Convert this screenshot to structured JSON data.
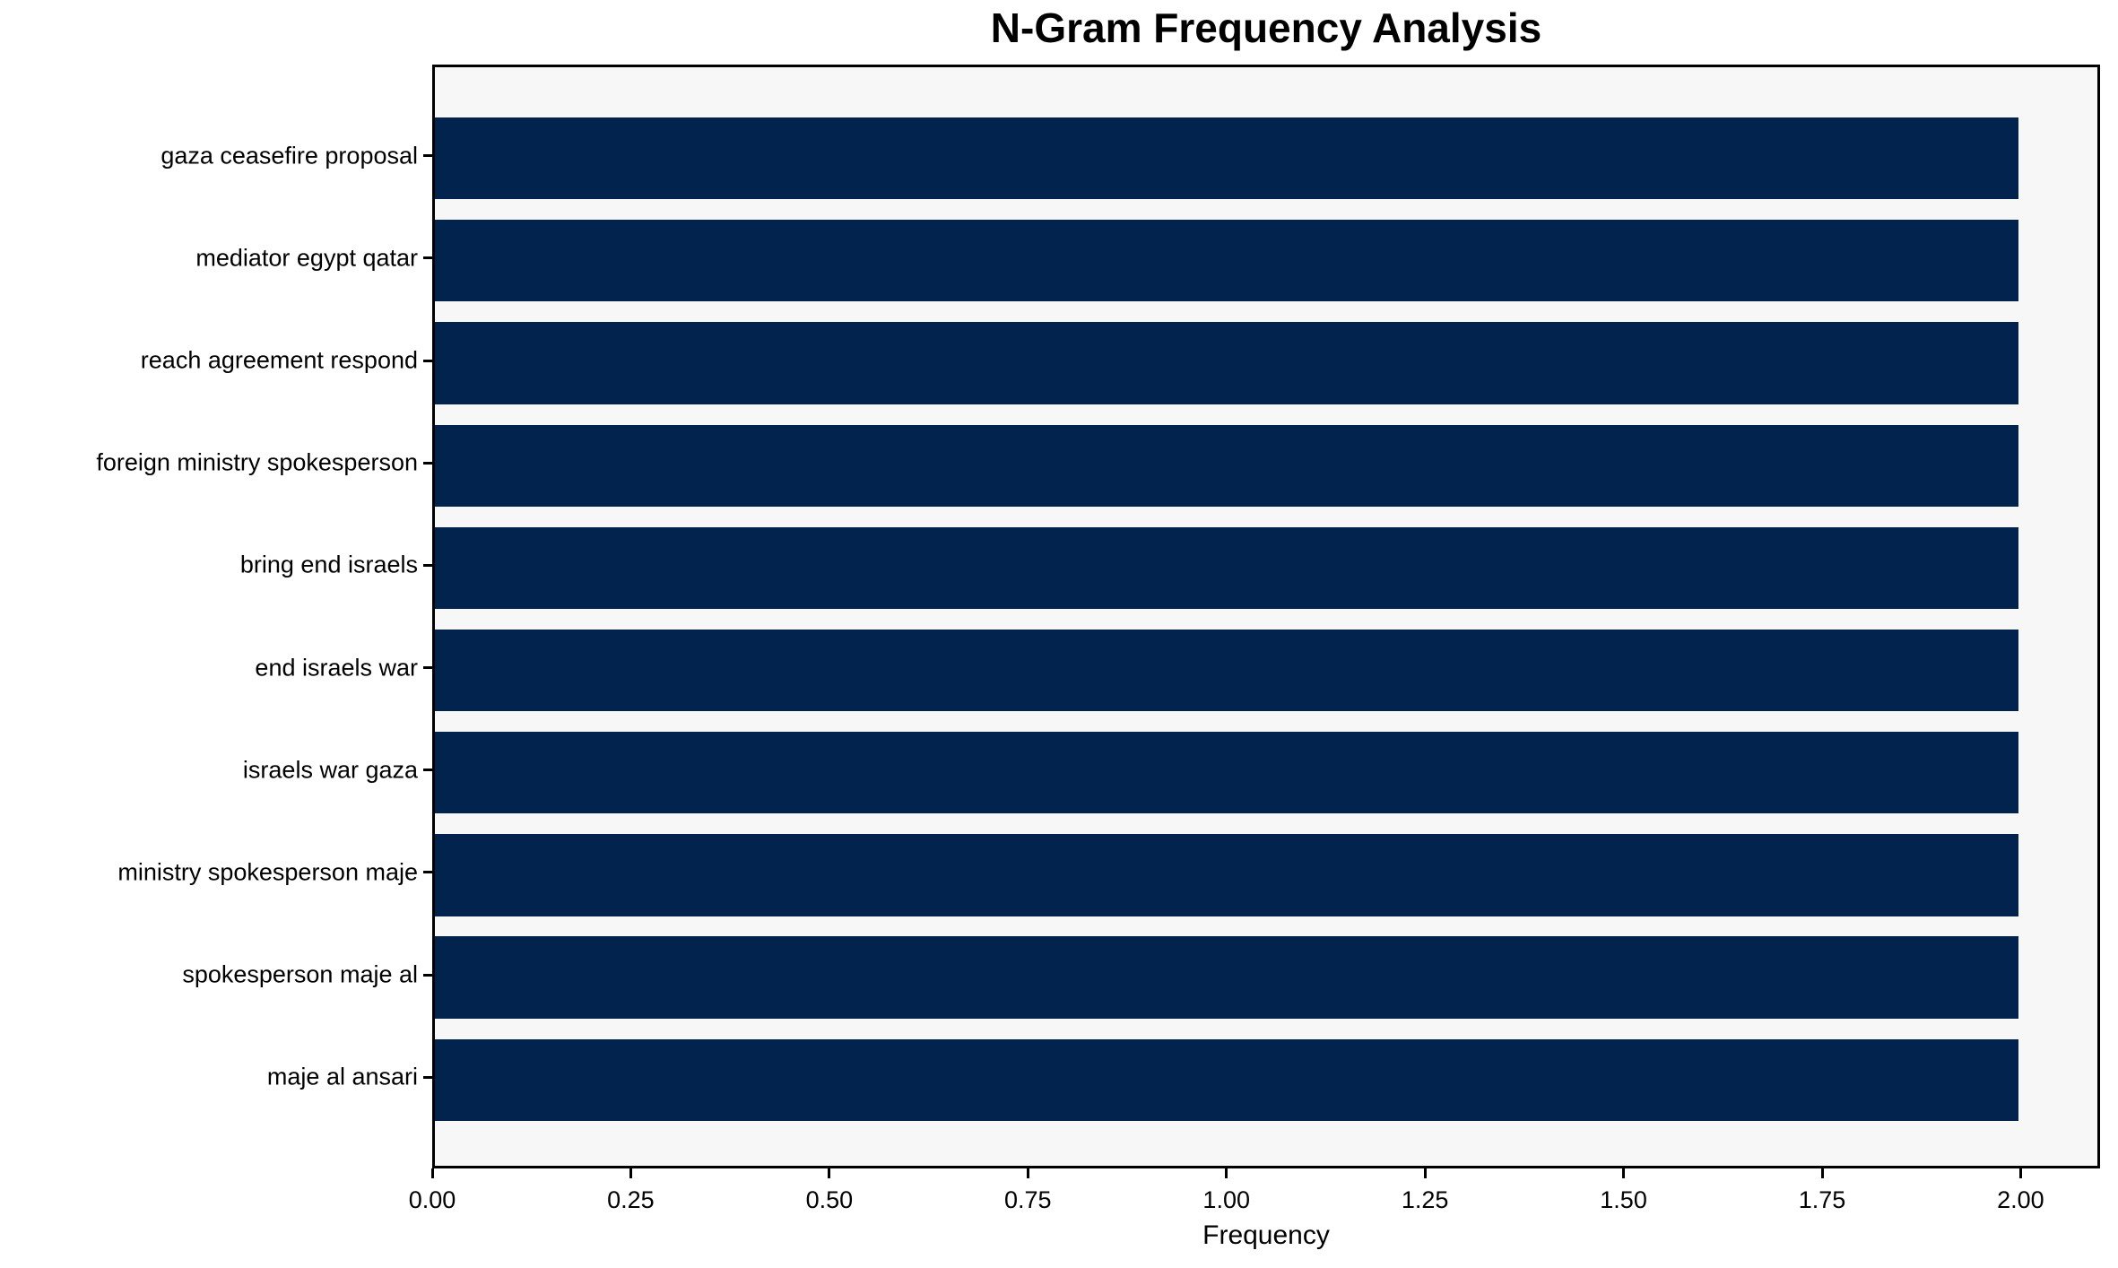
{
  "title": "N-Gram Frequency Analysis",
  "colors": {
    "bar": "#02234e",
    "plot_background": "#f7f7f7",
    "figure_background": "#ffffff",
    "spine": "#000000",
    "text": "#000000"
  },
  "chart_data": {
    "type": "bar",
    "orientation": "horizontal",
    "title": "N-Gram Frequency Analysis",
    "xlabel": "Frequency",
    "ylabel": "",
    "categories": [
      "gaza ceasefire proposal",
      "mediator egypt qatar",
      "reach agreement respond",
      "foreign ministry spokesperson",
      "bring end israels",
      "end israels war",
      "israels war gaza",
      "ministry spokesperson maje",
      "spokesperson maje al",
      "maje al ansari"
    ],
    "values": [
      2,
      2,
      2,
      2,
      2,
      2,
      2,
      2,
      2,
      2
    ],
    "xlim": [
      0,
      2.1
    ],
    "xticks": [
      0,
      0.25,
      0.5,
      0.75,
      1.0,
      1.25,
      1.5,
      1.75,
      2.0
    ],
    "xtick_labels": [
      "0.00",
      "0.25",
      "0.50",
      "0.75",
      "1.00",
      "1.25",
      "1.50",
      "1.75",
      "2.00"
    ],
    "grid": false,
    "legend": null,
    "bar_color": "#02234e"
  }
}
